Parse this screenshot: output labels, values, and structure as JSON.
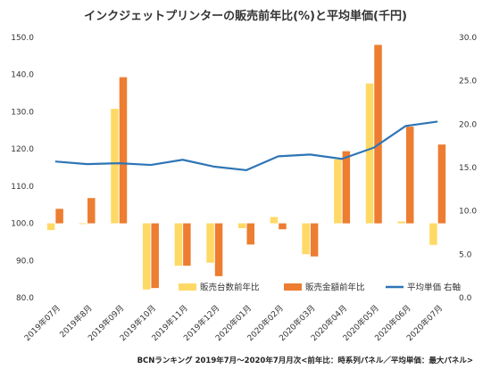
{
  "chart_data": {
    "type": "bar+line",
    "title": "インクジェットプリンターの販売前年比(%)と平均単価(千円)",
    "categories": [
      "2019年07月",
      "2019年8月",
      "2019年09月",
      "2019年10月",
      "2019年11月",
      "2019年12月",
      "2020年01月",
      "2020年02月",
      "2020年03月",
      "2020年04月",
      "2020年05月",
      "2020年06月",
      "2020年07月"
    ],
    "series": [
      {
        "name": "販売台数前年比",
        "type": "bar",
        "axis": "left",
        "color": "#FFD966",
        "values": [
          98.2,
          99.8,
          130.8,
          82.2,
          88.6,
          89.4,
          98.7,
          101.7,
          91.7,
          117.2,
          137.6,
          100.5,
          94.2
        ]
      },
      {
        "name": "販売金額前年比",
        "type": "bar",
        "axis": "left",
        "color": "#ED7D31",
        "values": [
          103.9,
          106.8,
          139.3,
          82.6,
          88.6,
          85.8,
          94.3,
          98.4,
          91.1,
          119.4,
          148.0,
          126.0,
          121.2
        ]
      },
      {
        "name": "平均単価 右軸",
        "type": "line",
        "axis": "right",
        "color": "#2E75B6",
        "values": [
          15.7,
          15.4,
          15.5,
          15.3,
          15.9,
          15.1,
          14.7,
          16.3,
          16.5,
          16.0,
          17.3,
          19.8,
          20.3
        ]
      }
    ],
    "y_left": {
      "min": 80,
      "max": 150,
      "step": 10,
      "baseline": 100
    },
    "y_right": {
      "min": 0,
      "max": 30,
      "step": 5
    },
    "legend_position": "bottom-inside",
    "grid": false
  },
  "footnote": "BCNランキング 2019年7月～2020年7月月次<前年比：時系列パネル／平均単価：最大パネル>"
}
